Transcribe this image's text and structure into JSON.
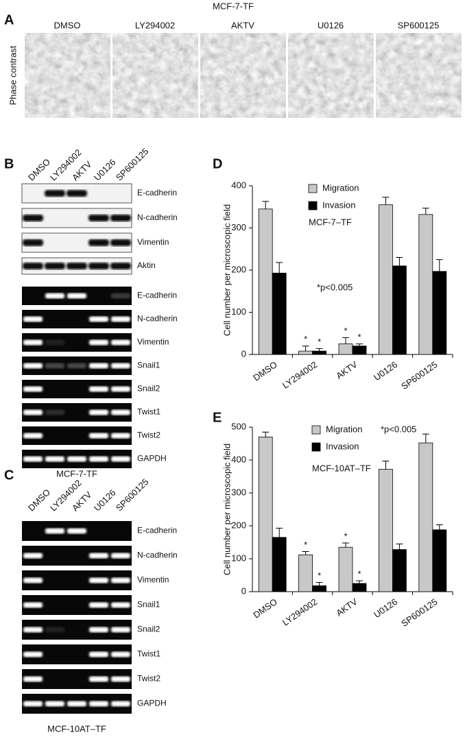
{
  "panel_a": {
    "label": "A",
    "title": "MCF-7-TF",
    "row_label": "Phase contrast",
    "columns": [
      "DMSO",
      "LY294002",
      "AKTV",
      "U0126",
      "SP600125"
    ]
  },
  "panel_b": {
    "label": "B",
    "lanes": [
      "DMSO",
      "LY294002",
      "AKTV",
      "U0126",
      "SP600125"
    ],
    "western_blot": [
      "E-cadherin",
      "N-cadherin",
      "Vimentin",
      "Aktin"
    ],
    "rt_pcr": [
      "E-cadherin",
      "N-cadherin",
      "Vimentin",
      "Snail1",
      "Snail2",
      "Twist1",
      "Twist2",
      "GAPDH"
    ],
    "caption": "MCF-7-TF"
  },
  "panel_c": {
    "label": "C",
    "lanes": [
      "DMSO",
      "LY294002",
      "AKTV",
      "U0126",
      "SP600125"
    ],
    "rt_pcr": [
      "E-cadherin",
      "N-cadherin",
      "Vimentin",
      "Snail1",
      "Snail2",
      "Twist1",
      "Twist2",
      "GAPDH"
    ],
    "caption": "MCF-10AT–TF"
  },
  "chart_data": [
    {
      "panel_label": "D",
      "type": "bar",
      "y_label": "Cell number per microscopic field",
      "annotation": "MCF-7–TF",
      "note": "*p<0.005",
      "categories": [
        "DMSO",
        "LY294002",
        "AKTV",
        "U0126",
        "SP600125"
      ],
      "series": [
        {
          "name": "Migration",
          "color": "#c8c8c8",
          "values": [
            345,
            8,
            25,
            355,
            332
          ],
          "errors": [
            18,
            12,
            15,
            18,
            15
          ]
        },
        {
          "name": "Invasion",
          "color": "#000000",
          "values": [
            193,
            8,
            20,
            210,
            197
          ],
          "errors": [
            25,
            6,
            5,
            20,
            28
          ]
        }
      ],
      "stars": [
        {
          "text": "*",
          "category": 1,
          "series": 0
        },
        {
          "text": "*",
          "category": 1,
          "series": 1
        },
        {
          "text": "*",
          "category": 2,
          "series": 0
        },
        {
          "text": "*",
          "category": 2,
          "series": 1
        }
      ],
      "ylim": [
        0,
        400
      ],
      "yticks": [
        0,
        100,
        200,
        300,
        400
      ]
    },
    {
      "panel_label": "E",
      "type": "bar",
      "y_label": "Cell number per microscopic field",
      "annotation": "MCF-10AT–TF",
      "note": "*p<0.005",
      "categories": [
        "DMSO",
        "LY294002",
        "AKTV",
        "U0126",
        "SP600125"
      ],
      "series": [
        {
          "name": "Migration",
          "color": "#c8c8c8",
          "values": [
            470,
            112,
            135,
            372,
            452
          ],
          "errors": [
            15,
            10,
            13,
            25,
            27
          ]
        },
        {
          "name": "Invasion",
          "color": "#000000",
          "values": [
            165,
            18,
            25,
            128,
            188
          ],
          "errors": [
            28,
            10,
            8,
            17,
            15
          ]
        }
      ],
      "stars": [
        {
          "text": "*",
          "category": 1,
          "series": 0
        },
        {
          "text": "*",
          "category": 1,
          "series": 1
        },
        {
          "text": "*",
          "category": 2,
          "series": 0
        },
        {
          "text": "*",
          "category": 2,
          "series": 1
        }
      ],
      "ylim": [
        0,
        500
      ],
      "yticks": [
        0,
        100,
        200,
        300,
        400,
        500
      ]
    }
  ]
}
